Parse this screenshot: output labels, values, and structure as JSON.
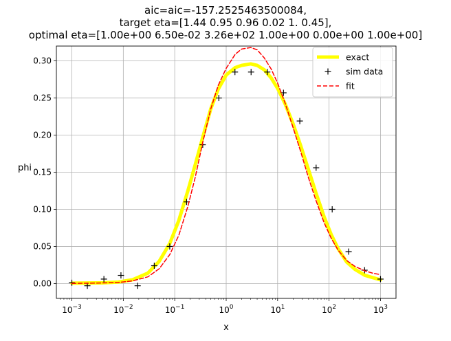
{
  "chart_data": {
    "type": "line",
    "title_lines": [
      "aic=aic=-157.2525463500084,",
      "target eta=[1.44 0.95 0.96 0.02 1.   0.45],",
      "optimal eta=[1.00e+00 6.50e-02 3.26e+02 1.00e+00 0.00e+00 1.00e+00]"
    ],
    "xlabel": "x",
    "ylabel": "phi",
    "xscale": "log",
    "xlim": [
      0.0005,
      2000
    ],
    "ylim": [
      -0.02,
      0.32
    ],
    "x_ticks": [
      {
        "value": 0.001,
        "base": "10",
        "exp": "−3"
      },
      {
        "value": 0.01,
        "base": "10",
        "exp": "−2"
      },
      {
        "value": 0.1,
        "base": "10",
        "exp": "−1"
      },
      {
        "value": 1,
        "base": "10",
        "exp": "0"
      },
      {
        "value": 10,
        "base": "10",
        "exp": "1"
      },
      {
        "value": 100,
        "base": "10",
        "exp": "2"
      },
      {
        "value": 1000,
        "base": "10",
        "exp": "3"
      }
    ],
    "y_ticks": [
      "0.00",
      "0.05",
      "0.10",
      "0.15",
      "0.20",
      "0.25",
      "0.30"
    ],
    "grid": true,
    "legend_position": "upper right",
    "series": [
      {
        "name": "exact",
        "style": "line",
        "color": "#ffff00",
        "x": [
          0.001,
          0.002,
          0.004,
          0.008,
          0.015,
          0.03,
          0.05,
          0.08,
          0.12,
          0.18,
          0.25,
          0.35,
          0.5,
          0.7,
          1.0,
          1.5,
          2.0,
          3.0,
          4.0,
          5.5,
          7.5,
          10,
          14,
          20,
          28,
          40,
          55,
          80,
          110,
          150,
          220,
          320,
          500,
          700,
          1000
        ],
        "y": [
          0.0005,
          0.0007,
          0.001,
          0.002,
          0.005,
          0.014,
          0.03,
          0.054,
          0.085,
          0.125,
          0.16,
          0.197,
          0.235,
          0.262,
          0.281,
          0.291,
          0.294,
          0.296,
          0.294,
          0.288,
          0.277,
          0.263,
          0.242,
          0.215,
          0.186,
          0.153,
          0.123,
          0.09,
          0.066,
          0.047,
          0.029,
          0.019,
          0.011,
          0.008,
          0.005
        ]
      },
      {
        "name": "sim data",
        "style": "marker",
        "marker": "+",
        "color": "#000000",
        "x": [
          0.001,
          0.002,
          0.0042,
          0.009,
          0.019,
          0.04,
          0.08,
          0.17,
          0.35,
          0.72,
          1.48,
          3.05,
          6.3,
          13,
          27,
          56,
          115,
          240,
          490,
          1000
        ],
        "y": [
          0.001,
          -0.003,
          0.006,
          0.011,
          -0.003,
          0.024,
          0.05,
          0.11,
          0.187,
          0.25,
          0.285,
          0.285,
          0.285,
          0.257,
          0.219,
          0.156,
          0.1,
          0.043,
          0.018,
          0.006
        ]
      },
      {
        "name": "fit",
        "style": "dashed",
        "color": "#ff0000",
        "x": [
          0.001,
          0.002,
          0.004,
          0.008,
          0.015,
          0.03,
          0.05,
          0.08,
          0.12,
          0.18,
          0.25,
          0.35,
          0.5,
          0.7,
          1.0,
          1.5,
          2.0,
          3.0,
          4.0,
          5.5,
          7.5,
          10,
          14,
          20,
          28,
          40,
          55,
          80,
          110,
          150,
          220,
          320,
          500,
          700,
          1000
        ],
        "y": [
          0.0002,
          0.0004,
          0.0008,
          0.0015,
          0.0035,
          0.009,
          0.02,
          0.039,
          0.065,
          0.104,
          0.143,
          0.19,
          0.235,
          0.267,
          0.29,
          0.309,
          0.316,
          0.318,
          0.315,
          0.304,
          0.289,
          0.27,
          0.243,
          0.21,
          0.178,
          0.142,
          0.113,
          0.082,
          0.061,
          0.045,
          0.031,
          0.023,
          0.017,
          0.014,
          0.012
        ]
      }
    ]
  }
}
